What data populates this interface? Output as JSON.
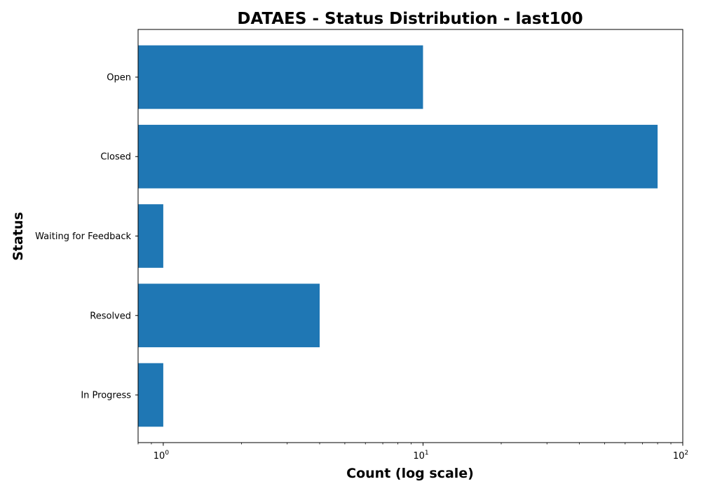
{
  "chart_data": {
    "type": "bar",
    "orientation": "horizontal",
    "title": "DATAES - Status Distribution - last100",
    "xlabel": "Count (log scale)",
    "ylabel": "Status",
    "x_scale": "log",
    "xlim": [
      0.8,
      100
    ],
    "x_ticks": [
      {
        "value": 1,
        "base": "10",
        "exp": "0"
      },
      {
        "value": 10,
        "base": "10",
        "exp": "1"
      },
      {
        "value": 100,
        "base": "10",
        "exp": "2"
      }
    ],
    "categories": [
      "Open",
      "Closed",
      "Waiting for Feedback",
      "Resolved",
      "In Progress"
    ],
    "values": [
      10,
      80,
      1,
      4,
      1
    ],
    "bar_color": "#1f77b4",
    "grid": false
  }
}
